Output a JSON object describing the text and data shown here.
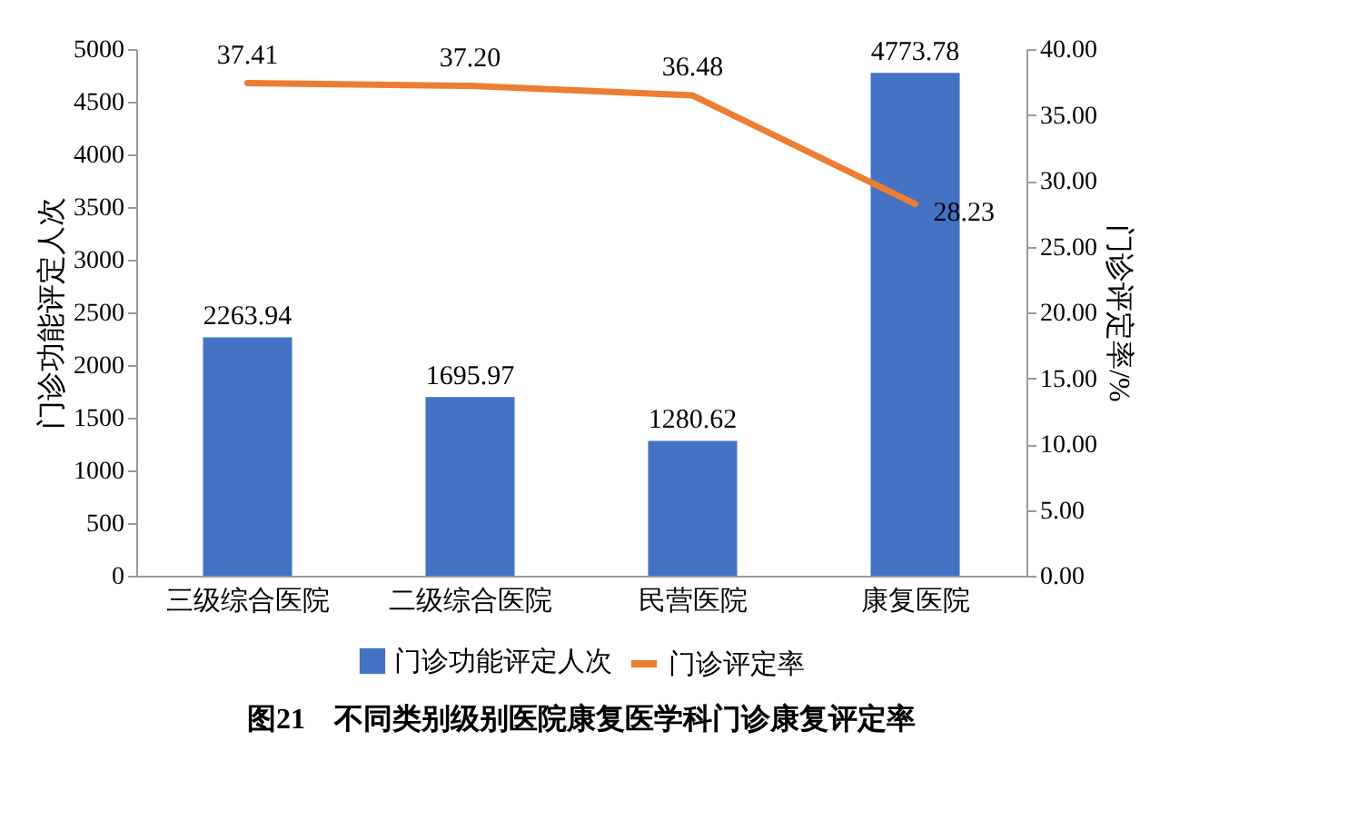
{
  "chart_data": {
    "type": "bar",
    "title": "图21　不同类别级别医院康复医学科门诊康复评定率",
    "categories": [
      "三级综合医院",
      "二级综合医院",
      "民营医院",
      "康复医院"
    ],
    "series": [
      {
        "name": "门诊功能评定人次",
        "color": "#4472c4",
        "values": [
          2263.94,
          1695.97,
          1280.62,
          4773.78
        ],
        "value_labels": [
          "2263.94",
          "1695.97",
          "1280.62",
          "4773.78"
        ]
      },
      {
        "name": "门诊评定率",
        "type": "line",
        "axis": "y2",
        "color": "#ed7d31",
        "values": [
          37.41,
          37.2,
          36.48,
          28.23
        ],
        "value_labels": [
          "37.41",
          "37.20",
          "36.48",
          "28.23"
        ]
      }
    ],
    "ylabel": "门诊功能评定人次",
    "y2label": "门诊评定率/%",
    "ylim": [
      0,
      5000
    ],
    "yticks": [
      0,
      500,
      1000,
      1500,
      2000,
      2500,
      3000,
      3500,
      4000,
      4500,
      5000
    ],
    "y2lim": [
      0,
      40
    ],
    "y2ticks": [
      {
        "value": 0,
        "label": "0.00"
      },
      {
        "value": 5,
        "label": "5.00"
      },
      {
        "value": 10,
        "label": "10.00"
      },
      {
        "value": 15,
        "label": "15.00"
      },
      {
        "value": 20,
        "label": "20.00"
      },
      {
        "value": 25,
        "label": "25.00"
      },
      {
        "value": 30,
        "label": "30.00"
      },
      {
        "value": 35,
        "label": "35.00"
      },
      {
        "value": 40,
        "label": "40.00"
      }
    ],
    "legend": "bottom",
    "grid": false
  }
}
